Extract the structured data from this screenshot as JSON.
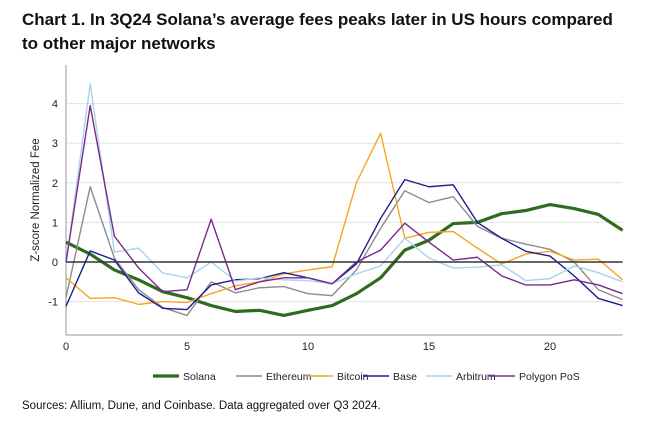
{
  "title": "Chart 1. In 3Q24 Solana’s average fees peaks later in US hours compared to other major networks",
  "source": "Sources: Allium, Dune, and Coinbase. Data aggregated over Q3 2024.",
  "chart_data": {
    "type": "line",
    "title": "Chart 1. In 3Q24 Solana’s average fees peaks later in US hours compared to other major networks",
    "xlabel": "",
    "ylabel": "Z-score Normalized Fee",
    "x": [
      0,
      1,
      2,
      3,
      4,
      5,
      6,
      7,
      8,
      9,
      10,
      11,
      12,
      13,
      14,
      15,
      16,
      17,
      18,
      19,
      20,
      21,
      22,
      23
    ],
    "xlim": [
      0,
      23
    ],
    "ylim": [
      -1.85,
      5
    ],
    "xticks": [
      0,
      5,
      10,
      15,
      20
    ],
    "yticks": [
      -1,
      0,
      1,
      2,
      3,
      4
    ],
    "grid": true,
    "legend": "bottom",
    "series": [
      {
        "name": "Solana",
        "color": "#2e6b1f",
        "values": [
          0.5,
          0.2,
          -0.2,
          -0.45,
          -0.75,
          -0.9,
          -1.1,
          -1.25,
          -1.22,
          -1.35,
          -1.22,
          -1.1,
          -0.8,
          -0.4,
          0.3,
          0.55,
          0.97,
          1.0,
          1.22,
          1.3,
          1.45,
          1.35,
          1.2,
          0.8
        ]
      },
      {
        "name": "Ethereum",
        "color": "#8c8c8c",
        "values": [
          -0.9,
          1.9,
          0.1,
          -0.7,
          -1.15,
          -1.35,
          -0.5,
          -0.78,
          -0.65,
          -0.62,
          -0.8,
          -0.85,
          -0.2,
          0.85,
          1.8,
          1.5,
          1.65,
          0.9,
          0.6,
          0.45,
          0.32,
          0.0,
          -0.7,
          -0.95
        ]
      },
      {
        "name": "Bitcoin",
        "color": "#f5a623",
        "values": [
          -0.4,
          -0.92,
          -0.9,
          -1.07,
          -1.0,
          -1.02,
          -0.8,
          -0.6,
          -0.5,
          -0.3,
          -0.2,
          -0.12,
          2.0,
          3.25,
          0.6,
          0.75,
          0.77,
          0.35,
          -0.05,
          0.2,
          0.27,
          0.05,
          0.07,
          -0.45
        ]
      },
      {
        "name": "Base",
        "color": "#1a1f8f",
        "values": [
          -1.12,
          0.28,
          0.05,
          -0.78,
          -1.17,
          -1.2,
          -0.58,
          -0.45,
          -0.42,
          -0.27,
          -0.4,
          -0.55,
          -0.05,
          1.1,
          2.08,
          1.9,
          1.95,
          1.0,
          0.6,
          0.27,
          0.15,
          -0.35,
          -0.92,
          -1.1
        ]
      },
      {
        "name": "Arbitrum",
        "color": "#a9d3ea",
        "values": [
          -0.05,
          4.5,
          0.25,
          0.35,
          -0.28,
          -0.4,
          0.0,
          -0.48,
          -0.4,
          -0.45,
          -0.47,
          -0.55,
          -0.3,
          -0.1,
          0.6,
          0.1,
          -0.15,
          -0.13,
          -0.07,
          -0.47,
          -0.42,
          -0.1,
          -0.27,
          -0.5
        ]
      },
      {
        "name": "Polygon PoS",
        "color": "#7b2a8c",
        "values": [
          0.0,
          3.95,
          0.65,
          -0.15,
          -0.75,
          -0.7,
          1.08,
          -0.7,
          -0.5,
          -0.4,
          -0.4,
          -0.55,
          0.0,
          0.3,
          0.98,
          0.5,
          0.05,
          0.12,
          -0.35,
          -0.58,
          -0.58,
          -0.45,
          -0.58,
          -0.8
        ]
      }
    ]
  }
}
